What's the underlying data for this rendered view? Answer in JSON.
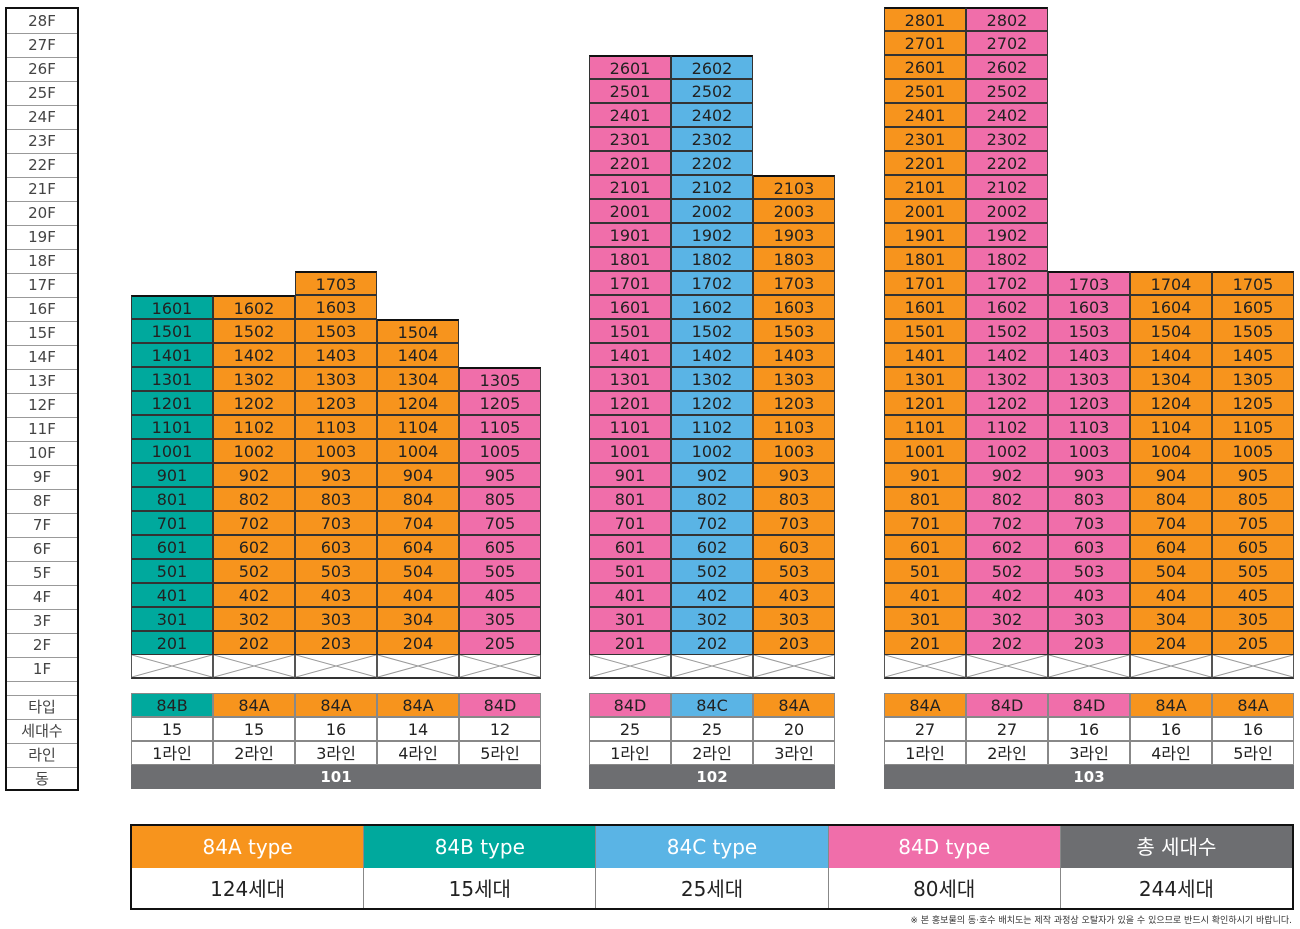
{
  "colors": {
    "84A": "#f7941d",
    "84B": "#00a99d",
    "84C": "#5ab4e5",
    "84D": "#f06eaa",
    "total": "#6d6e71"
  },
  "floor_labels": [
    "28F",
    "27F",
    "26F",
    "25F",
    "24F",
    "23F",
    "22F",
    "21F",
    "20F",
    "19F",
    "18F",
    "17F",
    "16F",
    "15F",
    "14F",
    "13F",
    "12F",
    "11F",
    "10F",
    "9F",
    "8F",
    "7F",
    "6F",
    "5F",
    "4F",
    "3F",
    "2F",
    "1F"
  ],
  "row_labels": {
    "type": "타입",
    "count": "세대수",
    "line": "라인",
    "dong": "동"
  },
  "buildings": [
    {
      "dong": "101",
      "lines": [
        {
          "line": "1라인",
          "type": "84B",
          "count": "15",
          "top_floor": 16
        },
        {
          "line": "2라인",
          "type": "84A",
          "count": "15",
          "top_floor": 16
        },
        {
          "line": "3라인",
          "type": "84A",
          "count": "16",
          "top_floor": 17
        },
        {
          "line": "4라인",
          "type": "84A",
          "count": "14",
          "top_floor": 15
        },
        {
          "line": "5라인",
          "type": "84D",
          "count": "12",
          "top_floor": 13
        }
      ]
    },
    {
      "dong": "102",
      "lines": [
        {
          "line": "1라인",
          "type": "84D",
          "count": "25",
          "top_floor": 26
        },
        {
          "line": "2라인",
          "type": "84C",
          "count": "25",
          "top_floor": 26
        },
        {
          "line": "3라인",
          "type": "84A",
          "count": "20",
          "top_floor": 21
        }
      ]
    },
    {
      "dong": "103",
      "lines": [
        {
          "line": "1라인",
          "type": "84A",
          "count": "27",
          "top_floor": 28
        },
        {
          "line": "2라인",
          "type": "84D",
          "count": "27",
          "top_floor": 28
        },
        {
          "line": "3라인",
          "type": "84D",
          "count": "16",
          "top_floor": 17
        },
        {
          "line": "4라인",
          "type": "84A",
          "count": "16",
          "top_floor": 17
        },
        {
          "line": "5라인",
          "type": "84A",
          "count": "16",
          "top_floor": 17
        }
      ]
    }
  ],
  "legend": [
    {
      "key": "84A",
      "label": "84A type",
      "value": "124세대"
    },
    {
      "key": "84B",
      "label": "84B type",
      "value": "15세대"
    },
    {
      "key": "84C",
      "label": "84C type",
      "value": "25세대"
    },
    {
      "key": "84D",
      "label": "84D type",
      "value": "80세대"
    },
    {
      "key": "total",
      "label": "총 세대수",
      "value": "244세대"
    }
  ],
  "note": "※ 본 홍보물의 동·호수 배치도는 제작 과정상 오탈자가 있을 수 있으므로 반드시 확인하시기 바랍니다."
}
